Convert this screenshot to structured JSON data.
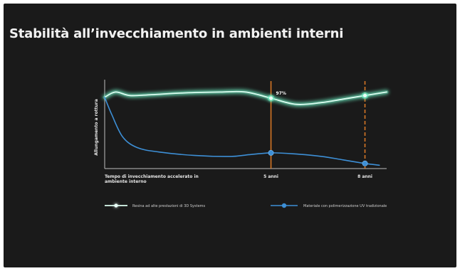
{
  "slide": {
    "title": "Stabilità all’invecchiamento in ambienti interni"
  },
  "colors": {
    "background": "#1a1a1a",
    "accent_green": "#6ff5c8",
    "accent_blue": "#3d8fd6",
    "marker_orange": "#e07b26"
  },
  "chart_data": {
    "type": "line",
    "title": "",
    "xlabel": "Tempo di invecchiamento accelerato in ambiente interno",
    "ylabel": "Allungamento a rottura",
    "x_ticks": [
      {
        "x": 4.6,
        "label": "5 anni"
      },
      {
        "x": 7.2,
        "label": "8 anni"
      }
    ],
    "xlim": [
      0,
      7.8
    ],
    "ylim": [
      0,
      100
    ],
    "grid": false,
    "legend": "bottom",
    "series": [
      {
        "name": "Resina ad alte prestazioni di 3D Systems",
        "color": "#6ff5c8",
        "style": "glow",
        "x": [
          0,
          0.3,
          0.7,
          1.3,
          2.2,
          3.2,
          3.9,
          4.6,
          5.3,
          6.0,
          6.6,
          7.2,
          7.8
        ],
        "y": [
          80,
          86,
          82,
          83,
          85,
          86,
          86,
          79,
          72,
          74,
          78,
          82,
          86
        ]
      },
      {
        "name": "Materiale con polimerizzazione UV tradizionale",
        "color": "#3d8fd6",
        "style": "line",
        "x": [
          0,
          0.2,
          0.5,
          0.9,
          1.5,
          2.5,
          3.5,
          4.0,
          4.6,
          5.2,
          6.0,
          6.6,
          7.2,
          7.6
        ],
        "y": [
          80,
          60,
          35,
          23,
          18,
          14,
          13,
          15,
          17,
          16,
          13,
          9,
          5,
          3
        ]
      }
    ],
    "markers": [
      {
        "x": 4.6,
        "style": "solid",
        "color": "#e07b26"
      },
      {
        "x": 7.2,
        "style": "dashed",
        "color": "#e07b26"
      }
    ],
    "point_markers": [
      {
        "series": 0,
        "x": 4.6,
        "y": 79
      },
      {
        "series": 0,
        "x": 7.2,
        "y": 82
      },
      {
        "series": 1,
        "x": 4.6,
        "y": 17
      },
      {
        "series": 1,
        "x": 7.2,
        "y": 5
      }
    ],
    "annotations": [
      {
        "x": 4.6,
        "y": 79,
        "text": "97%"
      }
    ]
  }
}
